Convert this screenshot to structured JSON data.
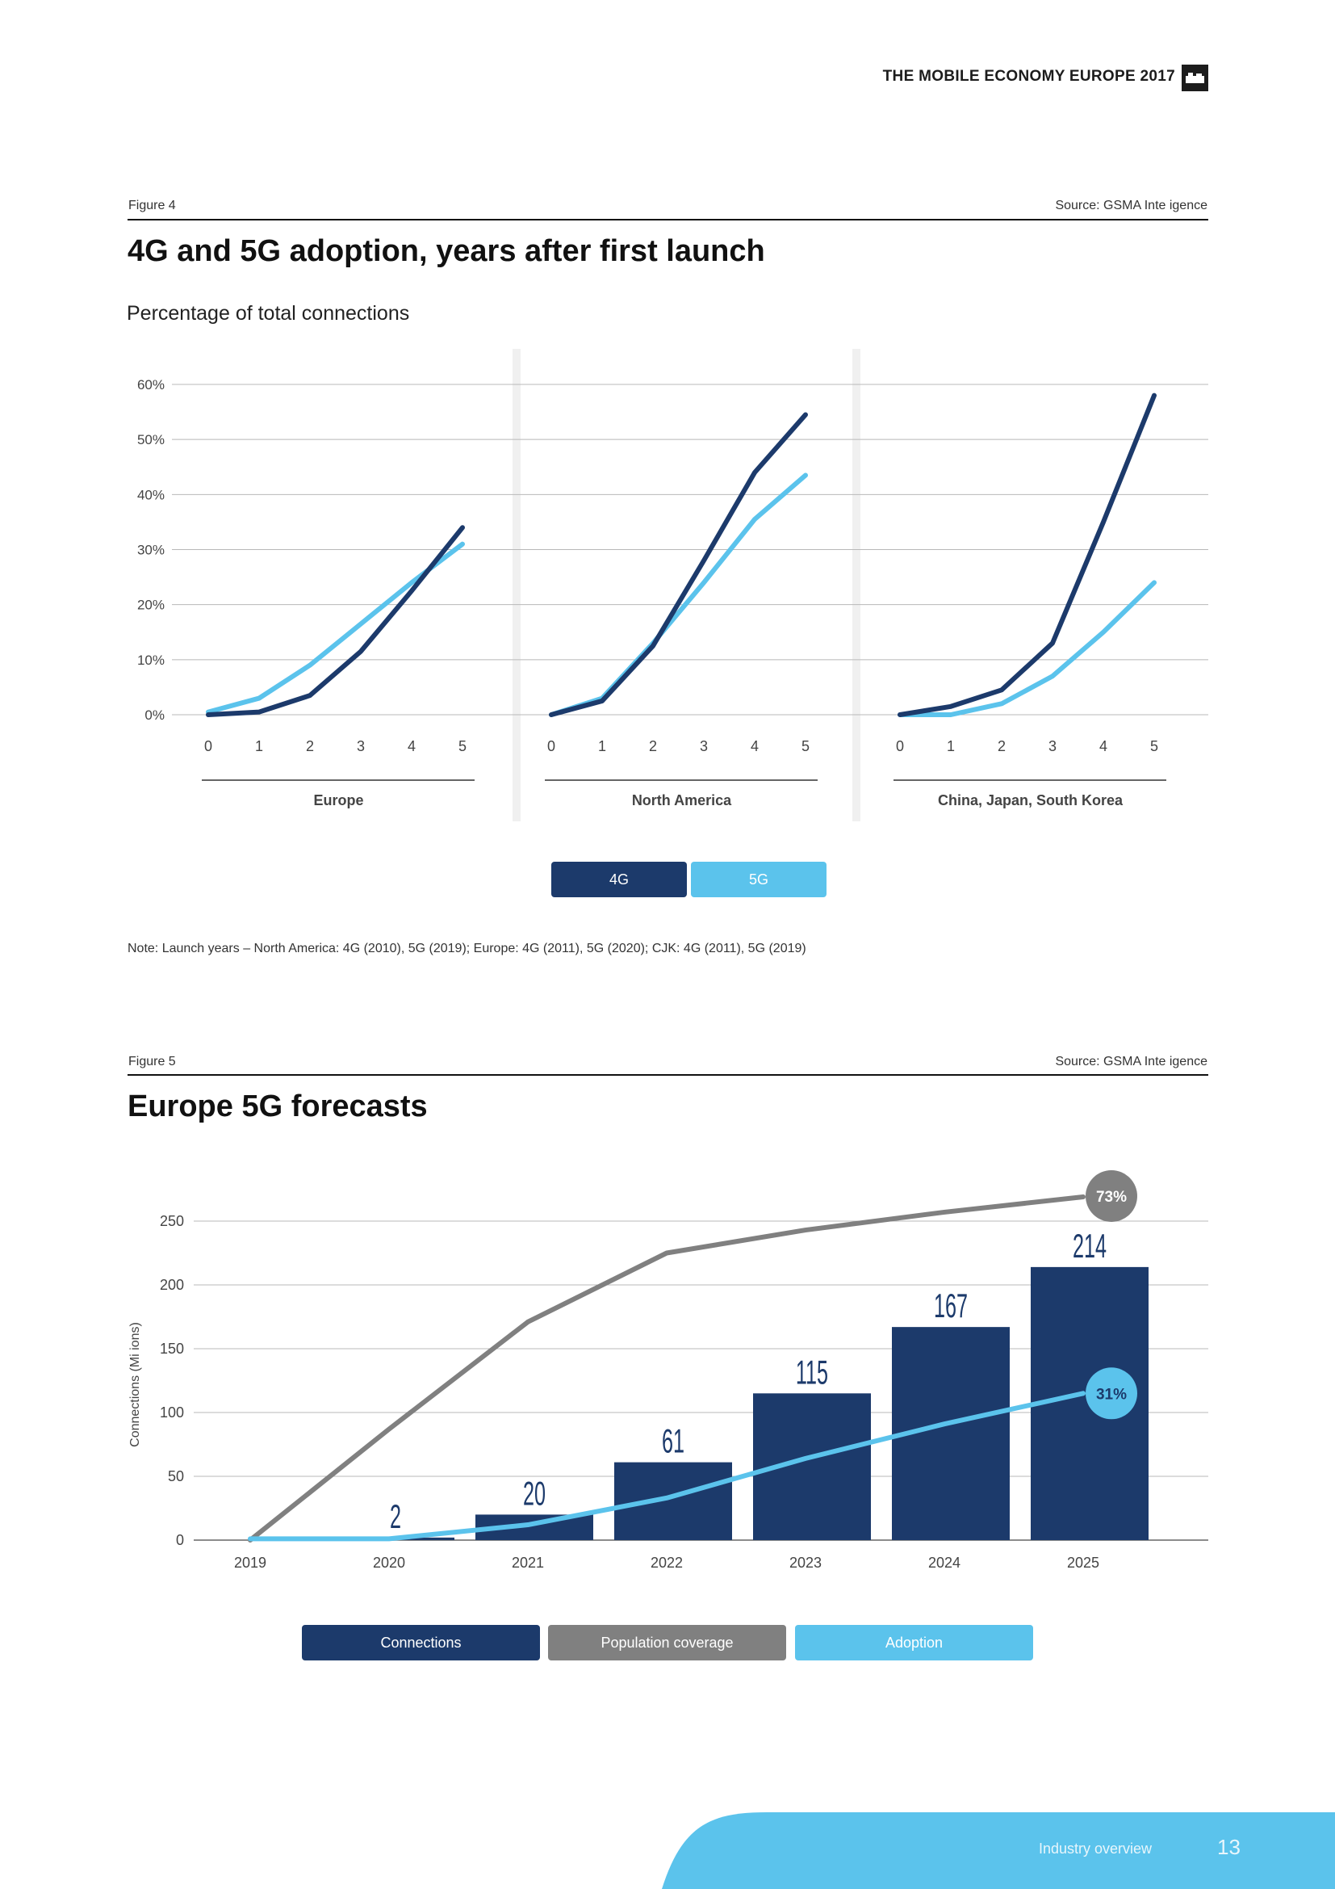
{
  "header": {
    "title": "THE MOBILE ECONOMY EUROPE 2017",
    "logo_icon": "gsma-logo-icon"
  },
  "figure4": {
    "label": "Figure 4",
    "source": "Source: GSMA Inte igence",
    "title": "4G and 5G adoption, years after first launch",
    "subtitle": "Percentage of total connections",
    "note": "Note: Launch years – North America: 4G (2010), 5G (2019); Europe: 4G (2011), 5G (2020); CJK: 4G (2011), 5G (2019)",
    "legend": [
      {
        "label": "4G",
        "color": "#1c3a6b"
      },
      {
        "label": "5G",
        "color": "#5bc3ec"
      }
    ]
  },
  "figure5": {
    "label": "Figure 5",
    "source": "Source: GSMA Inte igence",
    "title": "Europe 5G forecasts",
    "legend": [
      {
        "label": "Connections",
        "color": "#1c3a6b"
      },
      {
        "label": "Population coverage",
        "color": "#808080"
      },
      {
        "label": "Adoption",
        "color": "#5bc3ec"
      }
    ]
  },
  "chart_data": [
    {
      "type": "line",
      "title": "4G and 5G adoption, years after first launch",
      "ylabel": "Percentage of total connections",
      "ylim": [
        0,
        60
      ],
      "yticks": [
        "0%",
        "10%",
        "20%",
        "30%",
        "40%",
        "50%",
        "60%"
      ],
      "x": [
        0,
        1,
        2,
        3,
        4,
        5
      ],
      "panels": [
        {
          "name": "Europe",
          "series": [
            {
              "name": "4G",
              "values": [
                0,
                0.5,
                3.5,
                11.5,
                22.5,
                34
              ]
            },
            {
              "name": "5G",
              "values": [
                0.5,
                3,
                9,
                16.5,
                24,
                31
              ]
            }
          ]
        },
        {
          "name": "North America",
          "series": [
            {
              "name": "4G",
              "values": [
                0,
                2.5,
                12.5,
                28,
                44,
                54.5
              ]
            },
            {
              "name": "5G",
              "values": [
                0,
                3,
                13,
                24,
                35.5,
                43.5
              ]
            }
          ]
        },
        {
          "name": "China, Japan, South Korea",
          "series": [
            {
              "name": "4G",
              "values": [
                0,
                1.5,
                4.5,
                13,
                35,
                58
              ]
            },
            {
              "name": "5G",
              "values": [
                0,
                0,
                2,
                7,
                15,
                24
              ]
            }
          ]
        }
      ]
    },
    {
      "type": "bar",
      "title": "Europe 5G forecasts",
      "ylabel": "Connections (Mi ions)",
      "ylim": [
        0,
        250
      ],
      "yticks": [
        0,
        50,
        100,
        150,
        200,
        250
      ],
      "categories": [
        "2019",
        "2020",
        "2021",
        "2022",
        "2023",
        "2024",
        "2025"
      ],
      "series": [
        {
          "name": "Connections",
          "values": [
            0,
            2,
            20,
            61,
            115,
            167,
            214
          ],
          "labels": [
            "",
            "2",
            "20",
            "61",
            "115",
            "167",
            "214"
          ]
        },
        {
          "name": "Population coverage",
          "values": [
            0,
            87,
            171,
            225,
            243,
            257,
            269
          ],
          "end_label": "73%"
        },
        {
          "name": "Adoption",
          "values": [
            1,
            1,
            12,
            33,
            64,
            91,
            115
          ],
          "end_label": "31%"
        }
      ]
    }
  ],
  "footer": {
    "section": "Industry overview",
    "page": "13"
  }
}
